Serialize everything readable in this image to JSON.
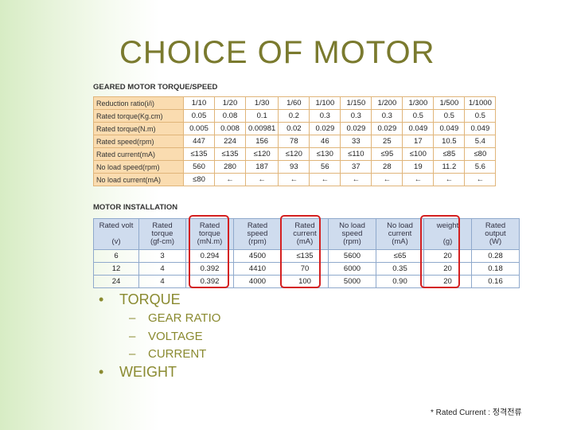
{
  "title": "CHOICE OF MOTOR",
  "geared_table": {
    "title": "GEARED MOTOR TORQUE/SPEED",
    "rows": [
      {
        "label": "Reduction ratio(i/i)",
        "values": [
          "1/10",
          "1/20",
          "1/30",
          "1/60",
          "1/100",
          "1/150",
          "1/200",
          "1/300",
          "1/500",
          "1/1000"
        ]
      },
      {
        "label": "Rated torque(Kg.cm)",
        "values": [
          "0.05",
          "0.08",
          "0.1",
          "0.2",
          "0.3",
          "0.3",
          "0.3",
          "0.5",
          "0.5",
          "0.5"
        ]
      },
      {
        "label": "Rated torque(N.m)",
        "values": [
          "0.005",
          "0.008",
          "0.00981",
          "0.02",
          "0.029",
          "0.029",
          "0.029",
          "0.049",
          "0.049",
          "0.049"
        ]
      },
      {
        "label": "Rated speed(rpm)",
        "values": [
          "447",
          "224",
          "156",
          "78",
          "46",
          "33",
          "25",
          "17",
          "10.5",
          "5.4"
        ]
      },
      {
        "label": "Rated current(mA)",
        "values": [
          "≤135",
          "≤135",
          "≤120",
          "≤120",
          "≤130",
          "≤110",
          "≤95",
          "≤100",
          "≤85",
          "≤80"
        ]
      },
      {
        "label": "No load speed(rpm)",
        "values": [
          "560",
          "280",
          "187",
          "93",
          "56",
          "37",
          "28",
          "19",
          "11.2",
          "5.6"
        ]
      },
      {
        "label": "No load current(mA)",
        "values": [
          "≤80",
          "←",
          "←",
          "←",
          "←",
          "←",
          "←",
          "←",
          "←",
          "←"
        ]
      }
    ]
  },
  "install_table": {
    "title": "MOTOR INSTALLATION",
    "headers": [
      [
        "Rated volt",
        "",
        "(v)"
      ],
      [
        "Rated",
        "torque",
        "(gf-cm)"
      ],
      [
        "Rated",
        "torque",
        "(mN.m)"
      ],
      [
        "Rated",
        "speed",
        "(rpm)"
      ],
      [
        "Rated",
        "current",
        "(mA)"
      ],
      [
        "No load",
        "speed",
        "(rpm)"
      ],
      [
        "No load",
        "current",
        "(mA)"
      ],
      [
        "weight",
        "",
        "(g)"
      ],
      [
        "Rated",
        "output",
        "(W)"
      ]
    ],
    "rows": [
      [
        "6",
        "3",
        "0.294",
        "4500",
        "≤135",
        "5600",
        "≤65",
        "20",
        "0.28"
      ],
      [
        "12",
        "4",
        "0.392",
        "4410",
        "70",
        "6000",
        "0.35",
        "20",
        "0.18"
      ],
      [
        "24",
        "4",
        "0.392",
        "4000",
        "100",
        "5000",
        "0.90",
        "20",
        "0.16"
      ]
    ]
  },
  "bullets": {
    "b1": "TORQUE",
    "sub": [
      "GEAR RATIO",
      "VOLTAGE",
      "CURRENT"
    ],
    "b2": "WEIGHT",
    "bullet_char": "•",
    "dash_char": "–"
  },
  "footnote": "* Rated Current : 정격전류",
  "colors": {
    "title": "#7a7a2e",
    "highlight_box": "#d42020",
    "geared_header_fill": "#fadcb0",
    "install_header_fill": "#cfdcee"
  }
}
